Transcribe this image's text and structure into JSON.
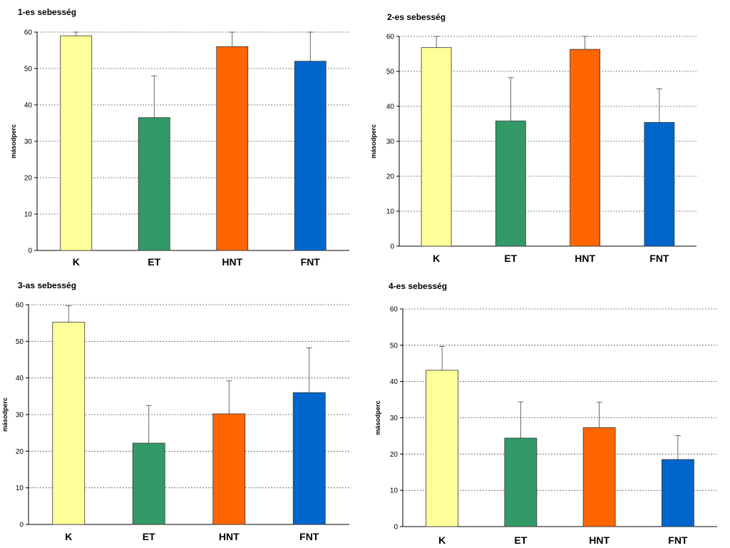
{
  "chart_data": [
    {
      "type": "bar",
      "title": "1-es sebesség",
      "xlabel": "",
      "ylabel": "másodperc",
      "ylim": [
        0,
        60
      ],
      "yticks": [
        0,
        10,
        20,
        30,
        40,
        50,
        60
      ],
      "grid": true,
      "categories": [
        "K",
        "ET",
        "HNT",
        "FNT"
      ],
      "values": [
        59,
        36.5,
        56,
        52
      ],
      "errors_upper": [
        1,
        11.5,
        4,
        8
      ],
      "colors": [
        "#FFFF99",
        "#339966",
        "#FF6600",
        "#0066CC"
      ]
    },
    {
      "type": "bar",
      "title": "2-es sebesség",
      "xlabel": "",
      "ylabel": "másodperc",
      "ylim": [
        0,
        60
      ],
      "yticks": [
        0,
        10,
        20,
        30,
        40,
        50,
        60
      ],
      "grid": true,
      "categories": [
        "K",
        "ET",
        "HNT",
        "FNT"
      ],
      "values": [
        56.8,
        35.8,
        56.3,
        35.4
      ],
      "errors_upper": [
        3.2,
        12.4,
        3.7,
        9.6
      ],
      "colors": [
        "#FFFF99",
        "#339966",
        "#FF6600",
        "#0066CC"
      ]
    },
    {
      "type": "bar",
      "title": "3-as sebesség",
      "xlabel": "",
      "ylabel": "másodperc",
      "ylim": [
        0,
        60
      ],
      "yticks": [
        0,
        10,
        20,
        30,
        40,
        50,
        60
      ],
      "grid": true,
      "categories": [
        "K",
        "ET",
        "HNT",
        "FNT"
      ],
      "values": [
        55.2,
        22.2,
        30.2,
        36
      ],
      "errors_upper": [
        4.5,
        10.3,
        9,
        12.2
      ],
      "colors": [
        "#FFFF99",
        "#339966",
        "#FF6600",
        "#0066CC"
      ]
    },
    {
      "type": "bar",
      "title": "4-es sebesség",
      "xlabel": "",
      "ylabel": "másodperc",
      "ylim": [
        0,
        60
      ],
      "yticks": [
        0,
        10,
        20,
        30,
        40,
        50,
        60
      ],
      "grid": true,
      "categories": [
        "K",
        "ET",
        "HNT",
        "FNT"
      ],
      "values": [
        43.1,
        24.4,
        27.3,
        18.5
      ],
      "errors_upper": [
        6.6,
        10,
        7,
        6.6
      ],
      "colors": [
        "#FFFF99",
        "#339966",
        "#FF6600",
        "#0066CC"
      ]
    }
  ]
}
